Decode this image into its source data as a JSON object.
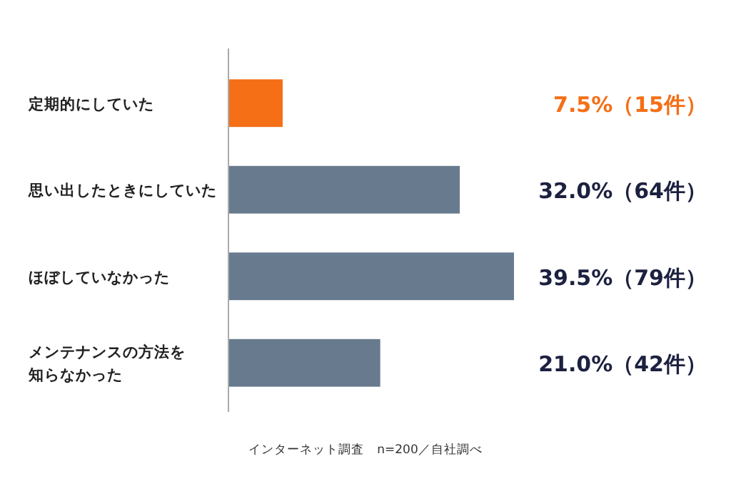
{
  "chart_data": {
    "type": "bar",
    "orientation": "horizontal",
    "categories": [
      "定期的にしていた",
      "思い出したときにしていた",
      "ほぼしていなかった",
      "メンテナンスの方法を知らなかった"
    ],
    "values": [
      7.5,
      32.0,
      39.5,
      21.0
    ],
    "colors": [
      "#f46f16",
      "#687a8e",
      "#687a8e",
      "#687a8e"
    ],
    "value_labels": [
      "7.5%（15件）",
      "32.0%（64件）",
      "39.5%（79件）",
      "21.0%（42件）"
    ],
    "annotations": [
      "インターネット調査　n=200／自社調べ"
    ]
  }
}
